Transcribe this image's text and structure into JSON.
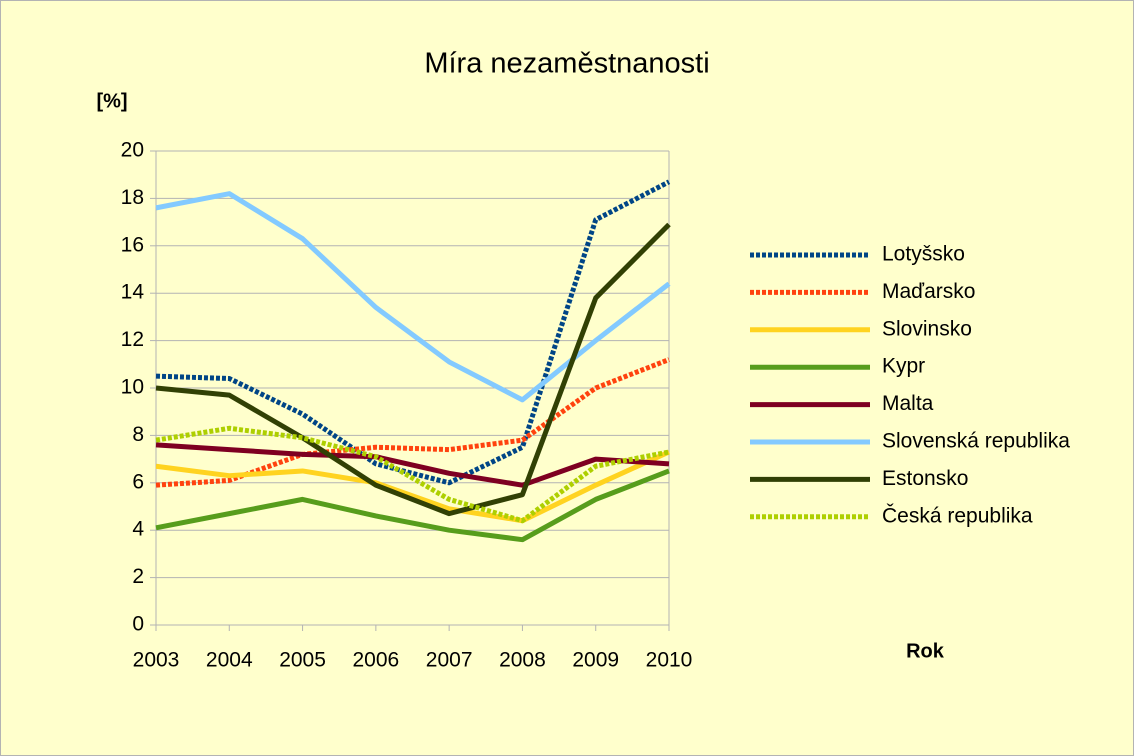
{
  "chart_data": {
    "type": "line",
    "title": "Míra nezaměstnanosti",
    "y_label": "[%]",
    "x_label": "Rok",
    "categories": [
      "2003",
      "2004",
      "2005",
      "2006",
      "2007",
      "2008",
      "2009",
      "2010"
    ],
    "ylim": [
      0,
      20
    ],
    "yticks": [
      0,
      2,
      4,
      6,
      8,
      10,
      12,
      14,
      16,
      18,
      20
    ],
    "grid": true,
    "legend": "right",
    "series": [
      {
        "name": "Lotyšsko",
        "color": "#004586",
        "style": "dotted",
        "values": [
          10.5,
          10.4,
          8.9,
          6.8,
          6.0,
          7.5,
          17.1,
          18.7
        ]
      },
      {
        "name": "Maďarsko",
        "color": "#ff420e",
        "style": "dotted",
        "values": [
          5.9,
          6.1,
          7.2,
          7.5,
          7.4,
          7.8,
          10.0,
          11.2
        ]
      },
      {
        "name": "Slovinsko",
        "color": "#ffd320",
        "style": "solid",
        "values": [
          6.7,
          6.3,
          6.5,
          6.0,
          4.9,
          4.4,
          5.9,
          7.3
        ]
      },
      {
        "name": "Kypr",
        "color": "#579d1c",
        "style": "solid",
        "values": [
          4.1,
          4.7,
          5.3,
          4.6,
          4.0,
          3.6,
          5.3,
          6.5
        ]
      },
      {
        "name": "Malta",
        "color": "#7e0021",
        "style": "solid",
        "values": [
          7.6,
          7.4,
          7.2,
          7.1,
          6.4,
          5.9,
          7.0,
          6.8
        ]
      },
      {
        "name": "Slovenská republika",
        "color": "#83caff",
        "style": "solid",
        "values": [
          17.6,
          18.2,
          16.3,
          13.4,
          11.1,
          9.5,
          12.0,
          14.4
        ]
      },
      {
        "name": "Estonsko",
        "color": "#314004",
        "style": "solid",
        "values": [
          10.0,
          9.7,
          7.9,
          5.9,
          4.7,
          5.5,
          13.8,
          16.9
        ]
      },
      {
        "name": "Česká republika",
        "color": "#aecf00",
        "style": "dotted",
        "values": [
          7.8,
          8.3,
          7.9,
          7.1,
          5.3,
          4.4,
          6.7,
          7.3
        ]
      }
    ]
  }
}
